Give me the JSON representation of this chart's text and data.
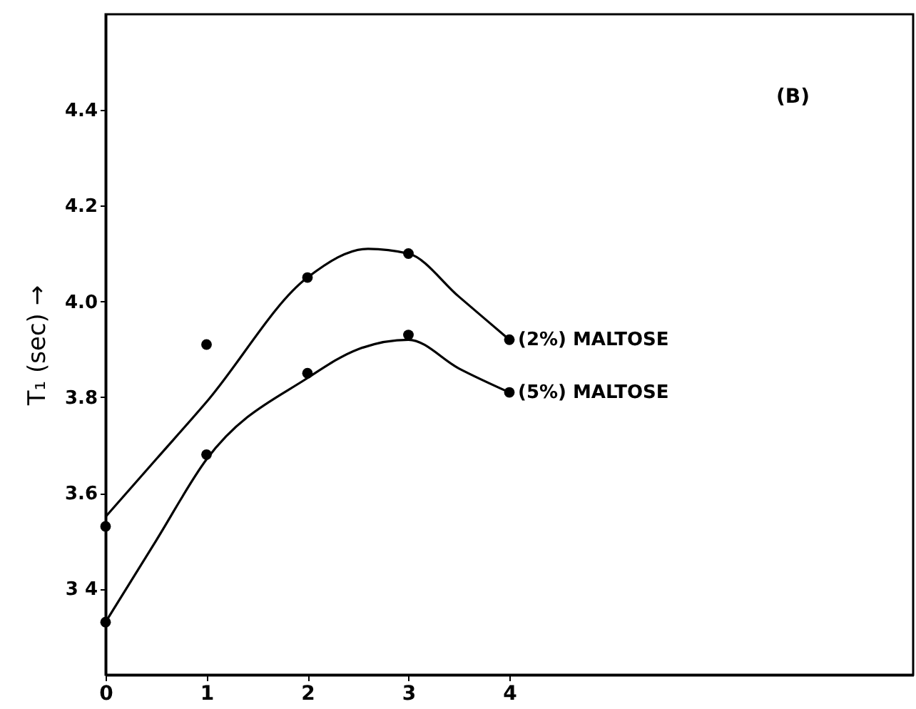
{
  "chart_data": {
    "type": "scatter",
    "ylabel": "T₁ (sec) →",
    "annotations": [
      "(B)"
    ],
    "xlim": [
      0,
      8
    ],
    "xticks": [
      0,
      1,
      2,
      3,
      4
    ],
    "ylim": [
      3.22,
      4.6
    ],
    "yticks": [
      {
        "value": 3.4,
        "label": "3 4"
      },
      3.6,
      3.8,
      {
        "value": 4.0,
        "label": "4.0"
      },
      4.2,
      4.4
    ],
    "grid": false,
    "legend": false,
    "marker": "circle",
    "series": [
      {
        "color": "#000000",
        "x": [
          0,
          1,
          2,
          3,
          4
        ],
        "values": [
          3.53,
          3.91,
          4.05,
          4.1,
          3.92
        ]
      },
      {
        "color": "#000000",
        "x": [
          0,
          1,
          2,
          3,
          4
        ],
        "values": [
          3.33,
          3.68,
          3.85,
          3.93,
          3.81
        ]
      },
      {
        "type": "line",
        "name": "(2%) MALTOSE",
        "color": "#000000",
        "marker": "none",
        "line_style": "solid",
        "x": [
          0,
          0.5,
          1,
          2,
          2.6,
          3,
          3.5,
          4
        ],
        "values": [
          3.55,
          3.67,
          3.79,
          4.05,
          4.11,
          4.1,
          4.01,
          3.92
        ]
      },
      {
        "type": "line",
        "name": "(5%) MALTOSE",
        "color": "#000000",
        "marker": "none",
        "line_style": "solid",
        "x": [
          0,
          0.5,
          1,
          2,
          2.5,
          3,
          3.5,
          4
        ],
        "values": [
          3.33,
          3.5,
          3.67,
          3.84,
          3.9,
          3.92,
          3.86,
          3.81
        ]
      }
    ]
  }
}
